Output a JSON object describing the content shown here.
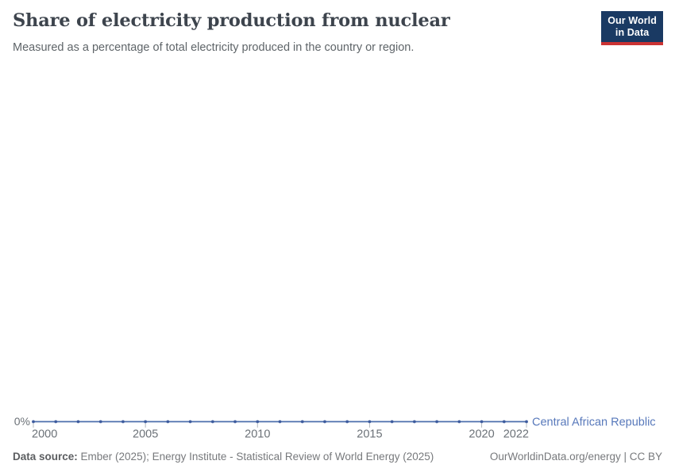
{
  "header": {
    "title": "Share of electricity production from nuclear",
    "subtitle": "Measured as a percentage of total electricity produced in the country or region."
  },
  "logo": {
    "line1": "Our World",
    "line2": "in Data",
    "bg_color": "#1a3a63",
    "accent_color": "#cb3333"
  },
  "chart_data": {
    "type": "line",
    "title": "Share of electricity production from nuclear",
    "subtitle": "Measured as a percentage of total electricity produced in the country or region.",
    "x": [
      2000,
      2001,
      2002,
      2003,
      2004,
      2005,
      2006,
      2007,
      2008,
      2009,
      2010,
      2011,
      2012,
      2013,
      2014,
      2015,
      2016,
      2017,
      2018,
      2019,
      2020,
      2021,
      2022
    ],
    "series": [
      {
        "name": "Central African Republic",
        "values": [
          0,
          0,
          0,
          0,
          0,
          0,
          0,
          0,
          0,
          0,
          0,
          0,
          0,
          0,
          0,
          0,
          0,
          0,
          0,
          0,
          0,
          0,
          0
        ],
        "color": "#4d6fad",
        "marker_color": "#3e5c9e",
        "label_color": "#5879bb"
      }
    ],
    "x_tick_labels": [
      "2000",
      "2005",
      "2010",
      "2015",
      "2020",
      "2022"
    ],
    "x_ticks": [
      2000,
      2005,
      2010,
      2015,
      2020,
      2022
    ],
    "y_tick_labels": [
      "0%"
    ],
    "unit": "%",
    "grid": false,
    "legend_position": "end-of-line-label",
    "markers": true
  },
  "footer": {
    "source_label": "Data source:",
    "source_text": " Ember (2025); Energy Institute - Statistical Review of World Energy (2025)",
    "link": "OurWorldinData.org/energy | CC BY"
  }
}
